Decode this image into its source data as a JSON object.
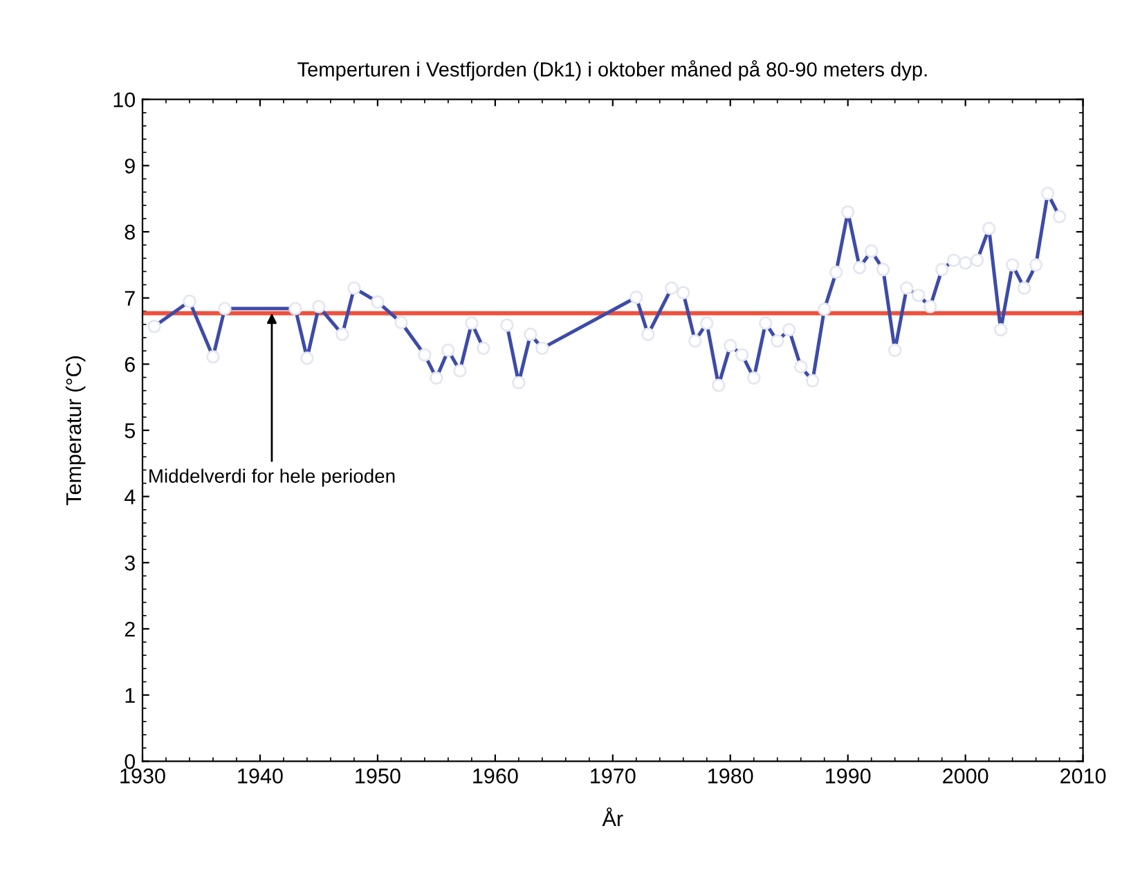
{
  "chart_data": {
    "type": "line",
    "title": "Temperturen i Vestfjorden (Dk1) i oktober måned på 80-90 meters dyp.",
    "xlabel": "År",
    "ylabel": "Temperatur (°C)",
    "x": [
      1931,
      1934,
      1936,
      1937,
      1943,
      1944,
      1945,
      1947,
      1948,
      1950,
      1952,
      1954,
      1955,
      1956,
      1957,
      1958,
      1959,
      1960,
      1961,
      1962,
      1963,
      1964,
      1972,
      1973,
      1975,
      1976,
      1977,
      1978,
      1979,
      1980,
      1981,
      1982,
      1983,
      1984,
      1985,
      1986,
      1987,
      1988,
      1989,
      1990,
      1991,
      1992,
      1993,
      1994,
      1995,
      1996,
      1997,
      1998,
      1999,
      2000,
      2001,
      2002,
      2003,
      2004,
      2005,
      2006,
      2007,
      2008
    ],
    "series": [
      {
        "color": "#3d4ba8",
        "values": [
          6.57,
          6.95,
          6.11,
          6.84,
          6.84,
          6.09,
          6.87,
          6.45,
          7.15,
          6.94,
          6.63,
          6.14,
          5.79,
          6.21,
          5.9,
          6.62,
          6.24,
          null,
          6.59,
          5.72,
          6.45,
          6.24,
          7.01,
          6.45,
          7.15,
          7.08,
          6.35,
          6.62,
          5.68,
          6.28,
          6.14,
          5.79,
          6.62,
          6.35,
          6.52,
          5.96,
          5.75,
          6.83,
          7.39,
          8.3,
          7.46,
          7.71,
          7.43,
          6.21,
          7.15,
          7.04,
          6.87,
          7.43,
          7.57,
          7.53,
          7.57,
          8.05,
          6.52,
          7.5,
          7.15,
          7.5,
          8.58,
          8.23
        ]
      }
    ],
    "marker": "circle",
    "line_style": "solid",
    "grid": false,
    "legend": false,
    "xlim": [
      1930,
      2010
    ],
    "xticks": [
      1930,
      1940,
      1950,
      1960,
      1970,
      1980,
      1990,
      2000,
      2010
    ],
    "ylim": [
      0,
      10
    ],
    "yticks": [
      0,
      1,
      2,
      3,
      4,
      5,
      6,
      7,
      8,
      9,
      10
    ],
    "ref_lines": [
      {
        "axis": "y",
        "value": 6.77,
        "color": "#f0503c"
      }
    ],
    "annotations": [
      {
        "text": "Middelverdi for hele perioden",
        "x": 1941,
        "y": 6.77
      }
    ]
  }
}
